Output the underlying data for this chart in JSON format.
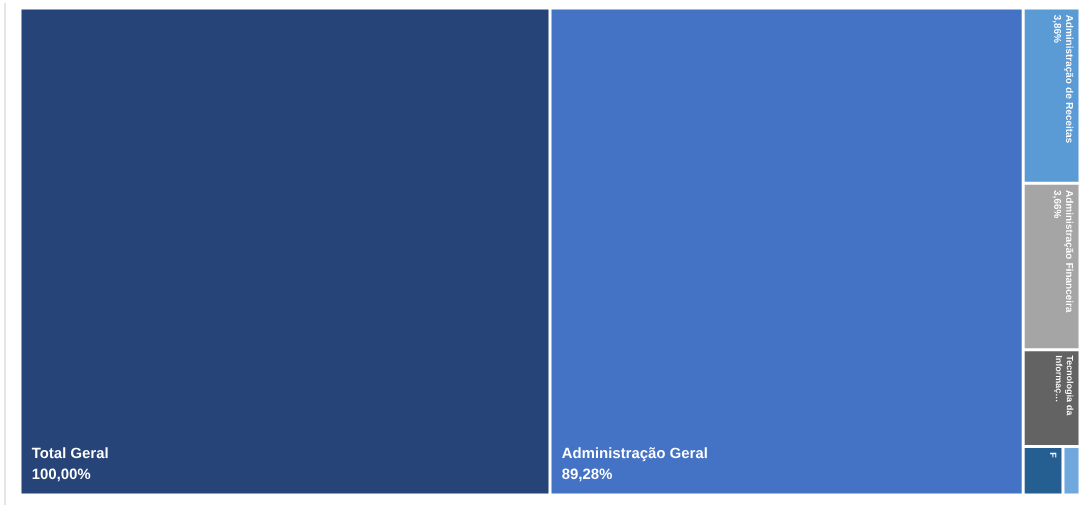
{
  "chart_data": {
    "type": "other",
    "categories": [
      "Total Geral",
      "Administração Geral",
      "Administração de Receitas",
      "Administração Financeira",
      "Tecnologia da Informaç…",
      "F",
      null
    ],
    "values": [
      100,
      89.28,
      3.86,
      3.66,
      null,
      null,
      null
    ],
    "value_labels": [
      "100,00%",
      "89,28%",
      "3,86%",
      "3,66%",
      null,
      null,
      null
    ],
    "colors": [
      "#264478",
      "#4472c4",
      "#5b9bd5",
      "#a5a5a5",
      "#636363",
      "#255e91",
      "#6fa8dc"
    ]
  }
}
